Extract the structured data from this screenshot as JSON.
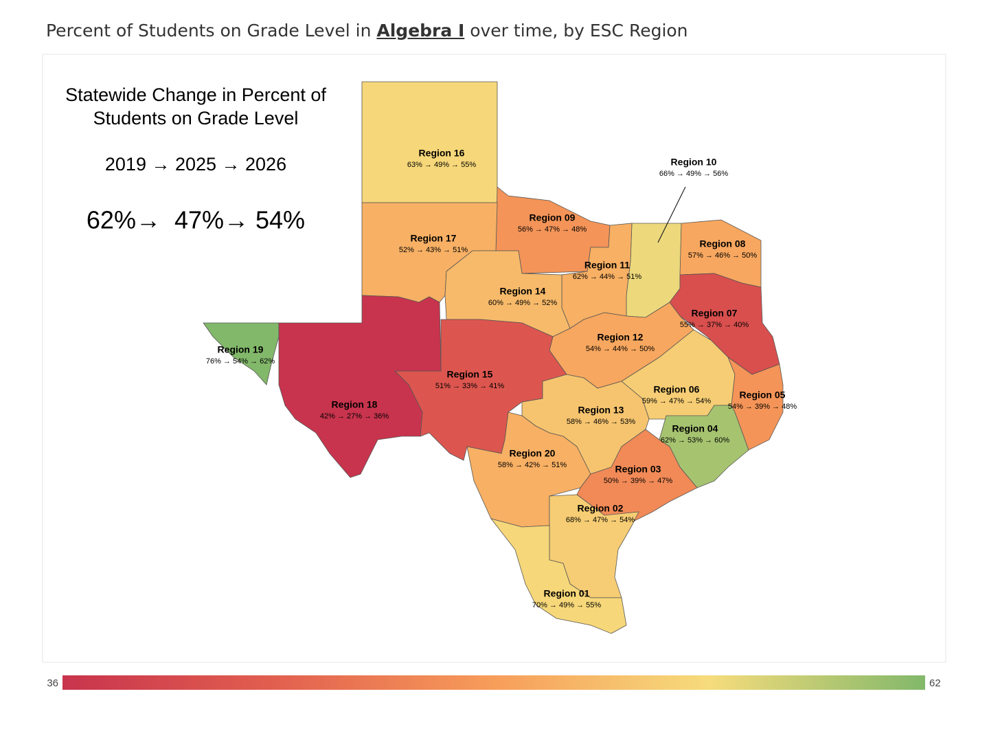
{
  "header": {
    "title_before": "Percent of Students on Grade Level in ",
    "title_subject": "Algebra I",
    "title_after": " over time, by ESC Region"
  },
  "statewide": {
    "heading_line1": "Statewide Change in Percent of",
    "heading_line2": "Students on Grade Level",
    "years": "2019 → 2025 → 2026",
    "values": "62%→  47%→ 54%"
  },
  "legend": {
    "min": 36,
    "max": 62,
    "colors": [
      "#c8344d",
      "#e2604f",
      "#f79d5a",
      "#f6dc7c",
      "#82b86a"
    ]
  },
  "regions": [
    {
      "name": "Region 16",
      "label": "63% → 49% → 55%",
      "value": 55
    },
    {
      "name": "Region 10",
      "label": "66% → 49% → 56%",
      "value": 56
    },
    {
      "name": "Region 09",
      "label": "56% → 47% → 48%",
      "value": 48
    },
    {
      "name": "Region 17",
      "label": "52% → 43% → 51%",
      "value": 51
    },
    {
      "name": "Region 08",
      "label": "57% → 46% → 50%",
      "value": 50
    },
    {
      "name": "Region 11",
      "label": "62% → 44% → 51%",
      "value": 51
    },
    {
      "name": "Region 14",
      "label": "60% → 49% → 52%",
      "value": 52
    },
    {
      "name": "Region 07",
      "label": "55% → 37% → 40%",
      "value": 40
    },
    {
      "name": "Region 12",
      "label": "54% → 44% → 50%",
      "value": 50
    },
    {
      "name": "Region 19",
      "label": "76% → 54% → 62%",
      "value": 62
    },
    {
      "name": "Region 15",
      "label": "51% → 33% → 41%",
      "value": 41
    },
    {
      "name": "Region 18",
      "label": "42% → 27% → 36%",
      "value": 36
    },
    {
      "name": "Region 06",
      "label": "59% → 47% → 54%",
      "value": 54
    },
    {
      "name": "Region 05",
      "label": "54% → 39% → 48%",
      "value": 48
    },
    {
      "name": "Region 13",
      "label": "58% → 46% → 53%",
      "value": 53
    },
    {
      "name": "Region 04",
      "label": "62% → 53% → 60%",
      "value": 60
    },
    {
      "name": "Region 20",
      "label": "58% → 42% → 51%",
      "value": 51
    },
    {
      "name": "Region 03",
      "label": "50% → 39% → 47%",
      "value": 47
    },
    {
      "name": "Region 02",
      "label": "68% → 47% → 54%",
      "value": 54
    },
    {
      "name": "Region 01",
      "label": "70% → 49% → 55%",
      "value": 55
    }
  ]
}
